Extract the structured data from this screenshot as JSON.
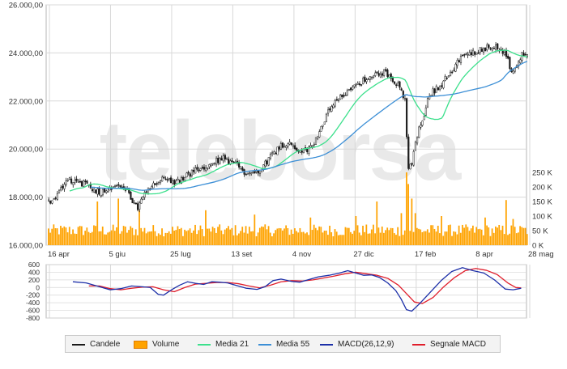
{
  "colors": {
    "candle": "#1a1a1a",
    "volume_fill": "#ffa300",
    "volume_stroke": "#e07b00",
    "ma21": "#3ce08c",
    "ma55": "#3c8fd6",
    "macd": "#1c2fa8",
    "signal": "#e01e2b",
    "grid": "#d8d8d8",
    "frame": "#b5b5b5",
    "watermark": "#e9e9e9"
  },
  "watermark": "teleborsa",
  "chart_data": [
    {
      "type": "candlestick",
      "title": "",
      "y_ticks": [
        "26.000,00",
        "24.000,00",
        "22.000,00",
        "20.000,00",
        "18.000,00",
        "16.000,00"
      ],
      "ylim": [
        16000,
        26000
      ],
      "x_ticks": [
        "16 apr",
        "5 giu",
        "25 lug",
        "13 set",
        "4 nov",
        "27 dic",
        "17 feb",
        "8 apr",
        "28 mag"
      ],
      "grid": true,
      "price_path": [
        [
          0,
          17800
        ],
        [
          3,
          17900
        ],
        [
          6,
          18250
        ],
        [
          8,
          18500
        ],
        [
          10,
          18700
        ],
        [
          12,
          18750
        ],
        [
          14,
          18650
        ],
        [
          18,
          18600
        ],
        [
          22,
          18500
        ],
        [
          26,
          18300
        ],
        [
          30,
          18200
        ],
        [
          34,
          18350
        ],
        [
          38,
          18500
        ],
        [
          42,
          18450
        ],
        [
          46,
          18150
        ],
        [
          49,
          17700
        ],
        [
          51,
          17550
        ],
        [
          53,
          17850
        ],
        [
          56,
          18200
        ],
        [
          60,
          18500
        ],
        [
          64,
          18700
        ],
        [
          68,
          18800
        ],
        [
          72,
          18600
        ],
        [
          76,
          18700
        ],
        [
          80,
          18950
        ],
        [
          84,
          19100
        ],
        [
          88,
          19150
        ],
        [
          92,
          19250
        ],
        [
          96,
          19500
        ],
        [
          100,
          19600
        ],
        [
          104,
          19450
        ],
        [
          108,
          19300
        ],
        [
          112,
          19050
        ],
        [
          116,
          19000
        ],
        [
          120,
          19100
        ],
        [
          124,
          19400
        ],
        [
          128,
          19800
        ],
        [
          132,
          20100
        ],
        [
          136,
          20250
        ],
        [
          140,
          20150
        ],
        [
          144,
          19850
        ],
        [
          148,
          19950
        ],
        [
          152,
          20300
        ],
        [
          156,
          20900
        ],
        [
          160,
          21500
        ],
        [
          164,
          21900
        ],
        [
          168,
          22200
        ],
        [
          172,
          22500
        ],
        [
          176,
          22650
        ],
        [
          180,
          22850
        ],
        [
          184,
          22900
        ],
        [
          188,
          23150
        ],
        [
          192,
          23200
        ],
        [
          196,
          23000
        ],
        [
          200,
          22700
        ],
        [
          202,
          22400
        ],
        [
          204,
          22000
        ],
        [
          205,
          20400
        ],
        [
          206,
          19200
        ],
        [
          208,
          19400
        ],
        [
          210,
          20200
        ],
        [
          212,
          20800
        ],
        [
          214,
          21200
        ],
        [
          216,
          21700
        ],
        [
          218,
          22300
        ],
        [
          222,
          22500
        ],
        [
          226,
          22800
        ],
        [
          230,
          23200
        ],
        [
          234,
          23600
        ],
        [
          238,
          23900
        ],
        [
          242,
          24000
        ],
        [
          246,
          24100
        ],
        [
          250,
          24200
        ],
        [
          254,
          24300
        ],
        [
          258,
          24200
        ],
        [
          262,
          23900
        ],
        [
          264,
          23400
        ],
        [
          266,
          23200
        ],
        [
          268,
          23500
        ],
        [
          270,
          23800
        ],
        [
          272,
          24000
        ],
        [
          274,
          23850
        ]
      ],
      "series": [
        {
          "name": "Candele"
        },
        {
          "name": "Media 21"
        },
        {
          "name": "Media 55"
        }
      ]
    },
    {
      "type": "bar",
      "title": "",
      "y_ticks": [
        "250 K",
        "200 K",
        "150 K",
        "100 K",
        "50 K",
        "0 K"
      ],
      "ylim": [
        0,
        250000
      ],
      "series": [
        {
          "name": "Volume"
        }
      ],
      "baseline_volume": 55000,
      "spikes": [
        [
          28,
          150000
        ],
        [
          40,
          160000
        ],
        [
          52,
          120000
        ],
        [
          90,
          120000
        ],
        [
          118,
          105000
        ],
        [
          150,
          95000
        ],
        [
          176,
          100000
        ],
        [
          188,
          150000
        ],
        [
          202,
          110000
        ],
        [
          205,
          250000
        ],
        [
          206,
          210000
        ],
        [
          208,
          160000
        ],
        [
          210,
          110000
        ],
        [
          225,
          100000
        ],
        [
          250,
          95000
        ],
        [
          262,
          155000
        ],
        [
          266,
          90000
        ]
      ]
    },
    {
      "type": "line",
      "title": "",
      "y_ticks": [
        "600",
        "400",
        "200",
        "0",
        "-200",
        "-400",
        "-600",
        "-800"
      ],
      "ylim": [
        -800,
        600
      ],
      "series": [
        {
          "name": "MACD(26,12,9)"
        },
        {
          "name": "Segnale MACD"
        }
      ],
      "macd_path": [
        [
          20,
          150
        ],
        [
          30,
          120
        ],
        [
          40,
          20
        ],
        [
          48,
          -60
        ],
        [
          56,
          -30
        ],
        [
          64,
          40
        ],
        [
          72,
          20
        ],
        [
          78,
          0
        ],
        [
          84,
          -180
        ],
        [
          88,
          -200
        ],
        [
          94,
          -60
        ],
        [
          100,
          60
        ],
        [
          106,
          150
        ],
        [
          112,
          110
        ],
        [
          118,
          80
        ],
        [
          124,
          150
        ],
        [
          130,
          140
        ],
        [
          136,
          120
        ],
        [
          142,
          60
        ],
        [
          150,
          -20
        ],
        [
          158,
          -50
        ],
        [
          164,
          20
        ],
        [
          170,
          180
        ],
        [
          176,
          220
        ],
        [
          184,
          160
        ],
        [
          190,
          140
        ],
        [
          196,
          200
        ],
        [
          204,
          280
        ],
        [
          212,
          320
        ],
        [
          220,
          380
        ],
        [
          226,
          440
        ],
        [
          232,
          380
        ],
        [
          238,
          320
        ],
        [
          244,
          330
        ],
        [
          250,
          260
        ],
        [
          256,
          120
        ],
        [
          262,
          -80
        ],
        [
          266,
          -300
        ],
        [
          270,
          -580
        ],
        [
          274,
          -620
        ],
        [
          280,
          -420
        ],
        [
          288,
          -120
        ],
        [
          296,
          180
        ],
        [
          304,
          420
        ],
        [
          312,
          520
        ],
        [
          320,
          440
        ],
        [
          328,
          380
        ],
        [
          336,
          200
        ],
        [
          344,
          -40
        ],
        [
          350,
          -60
        ],
        [
          356,
          -20
        ]
      ],
      "signal_path": [
        [
          32,
          40
        ],
        [
          40,
          40
        ],
        [
          48,
          -30
        ],
        [
          56,
          -60
        ],
        [
          64,
          -20
        ],
        [
          72,
          10
        ],
        [
          80,
          20
        ],
        [
          88,
          -60
        ],
        [
          96,
          -110
        ],
        [
          104,
          0
        ],
        [
          112,
          90
        ],
        [
          120,
          110
        ],
        [
          128,
          130
        ],
        [
          136,
          130
        ],
        [
          144,
          100
        ],
        [
          152,
          40
        ],
        [
          160,
          -10
        ],
        [
          168,
          60
        ],
        [
          176,
          150
        ],
        [
          184,
          180
        ],
        [
          192,
          170
        ],
        [
          200,
          200
        ],
        [
          208,
          250
        ],
        [
          216,
          300
        ],
        [
          224,
          360
        ],
        [
          232,
          400
        ],
        [
          240,
          360
        ],
        [
          248,
          320
        ],
        [
          256,
          240
        ],
        [
          264,
          60
        ],
        [
          270,
          -160
        ],
        [
          276,
          -380
        ],
        [
          282,
          -420
        ],
        [
          290,
          -260
        ],
        [
          298,
          20
        ],
        [
          306,
          260
        ],
        [
          314,
          440
        ],
        [
          322,
          500
        ],
        [
          330,
          450
        ],
        [
          338,
          340
        ],
        [
          346,
          120
        ],
        [
          352,
          0
        ],
        [
          356,
          -10
        ]
      ]
    }
  ]
}
